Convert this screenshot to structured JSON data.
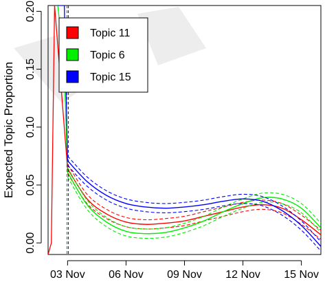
{
  "chart_data": {
    "type": "line",
    "title": "",
    "xlabel": "",
    "ylabel": "Expected Topic Proportion",
    "x_tick_labels": [
      "03 Nov",
      "06 Nov",
      "09 Nov",
      "12 Nov",
      "15 Nov"
    ],
    "x_ticks": [
      "2011-11-03",
      "2011-11-06",
      "2011-11-09",
      "2011-11-12",
      "2011-11-15"
    ],
    "xlim": [
      "2011-11-02",
      "2011-11-16"
    ],
    "y_tick_labels": [
      "0.00",
      "0.05",
      "0.10",
      "0.15",
      "0.20"
    ],
    "y_ticks": [
      0.0,
      0.05,
      0.1,
      0.15,
      0.2
    ],
    "ylim": [
      -0.01,
      0.205
    ],
    "grid": false,
    "legend_position": "top-left",
    "vertical_reference_lines": [
      "2011-11-03",
      "2011-11-03"
    ],
    "series": [
      {
        "name": "Topic 11",
        "color": "#ff0000",
        "x": [
          "2011-11-03",
          "2011-11-04",
          "2011-11-05",
          "2011-11-06",
          "2011-11-07",
          "2011-11-08",
          "2011-11-09",
          "2011-11-10",
          "2011-11-11",
          "2011-11-12",
          "2011-11-13",
          "2011-11-14",
          "2011-11-15",
          "2011-11-16"
        ],
        "mean": [
          0.064,
          0.038,
          0.025,
          0.018,
          0.016,
          0.017,
          0.019,
          0.023,
          0.027,
          0.031,
          0.033,
          0.03,
          0.02,
          0.007
        ],
        "lower": [
          0.06,
          0.034,
          0.021,
          0.014,
          0.012,
          0.013,
          0.015,
          0.019,
          0.023,
          0.027,
          0.029,
          0.026,
          0.016,
          0.003
        ],
        "upper": [
          0.068,
          0.042,
          0.029,
          0.022,
          0.02,
          0.021,
          0.023,
          0.027,
          0.031,
          0.035,
          0.037,
          0.034,
          0.024,
          0.011
        ]
      },
      {
        "name": "Topic 6",
        "color": "#00ee00",
        "x": [
          "2011-11-03",
          "2011-11-04",
          "2011-11-05",
          "2011-11-06",
          "2011-11-07",
          "2011-11-08",
          "2011-11-09",
          "2011-11-10",
          "2011-11-11",
          "2011-11-12",
          "2011-11-13",
          "2011-11-14",
          "2011-11-15",
          "2011-11-16"
        ],
        "mean": [
          0.061,
          0.033,
          0.018,
          0.01,
          0.008,
          0.009,
          0.013,
          0.019,
          0.027,
          0.034,
          0.039,
          0.038,
          0.03,
          0.013
        ],
        "lower": [
          0.057,
          0.029,
          0.014,
          0.006,
          0.004,
          0.005,
          0.009,
          0.015,
          0.023,
          0.03,
          0.035,
          0.034,
          0.026,
          0.009
        ],
        "upper": [
          0.065,
          0.037,
          0.022,
          0.014,
          0.012,
          0.013,
          0.017,
          0.023,
          0.031,
          0.038,
          0.043,
          0.042,
          0.034,
          0.017
        ]
      },
      {
        "name": "Topic 15",
        "color": "#0000ff",
        "x": [
          "2011-11-03",
          "2011-11-04",
          "2011-11-05",
          "2011-11-06",
          "2011-11-07",
          "2011-11-08",
          "2011-11-09",
          "2011-11-10",
          "2011-11-11",
          "2011-11-12",
          "2011-11-13",
          "2011-11-14",
          "2011-11-15",
          "2011-11-16"
        ],
        "mean": [
          0.071,
          0.053,
          0.041,
          0.034,
          0.031,
          0.03,
          0.031,
          0.033,
          0.036,
          0.038,
          0.036,
          0.028,
          0.015,
          -0.003
        ],
        "lower": [
          0.067,
          0.049,
          0.037,
          0.03,
          0.027,
          0.026,
          0.027,
          0.029,
          0.032,
          0.034,
          0.032,
          0.024,
          0.011,
          -0.007
        ],
        "upper": [
          0.075,
          0.057,
          0.045,
          0.038,
          0.035,
          0.034,
          0.035,
          0.037,
          0.04,
          0.042,
          0.04,
          0.032,
          0.019,
          0.001
        ]
      }
    ],
    "early_spike": [
      {
        "series": "Topic 6",
        "x": [
          "2011-11-02T12:00",
          "2011-11-02T20:00",
          "2011-11-03"
        ],
        "y": [
          0.205,
          0.15,
          0.061
        ]
      },
      {
        "series": "Topic 15",
        "x": [
          "2011-11-02T12:00",
          "2011-11-02T20:00",
          "2011-11-03"
        ],
        "y": [
          0.205,
          0.205,
          0.071
        ]
      },
      {
        "series": "Topic 11",
        "x": [
          "2011-11-02T00:00",
          "2011-11-02T04:00",
          "2011-11-02T08:00",
          "2011-11-03"
        ],
        "y": [
          -0.01,
          0.0,
          0.205,
          0.064
        ]
      }
    ]
  }
}
